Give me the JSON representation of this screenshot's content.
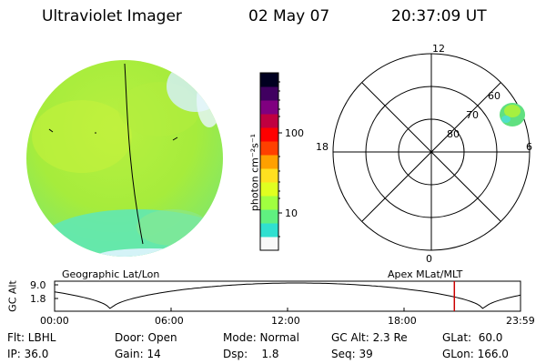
{
  "header": {
    "instrument": "Ultraviolet Imager",
    "date": "02 May 07",
    "time": "20:37:09 UT"
  },
  "colorbar": {
    "unit": "photon cm⁻²s⁻¹",
    "ticks": [
      "100",
      "10"
    ],
    "colors": [
      "#f8f8f8",
      "#30e0d0",
      "#60f080",
      "#a0ff40",
      "#e0ff20",
      "#ffe020",
      "#ffa000",
      "#ff4000",
      "#ff0000",
      "#c00040",
      "#800080",
      "#400060",
      "#000020"
    ]
  },
  "polar_plot": {
    "mlt_labels": [
      "12",
      "18",
      "6",
      "0"
    ],
    "lat_labels": [
      "60",
      "70",
      "80"
    ]
  },
  "altitude_panel": {
    "left_title": "Geographic Lat/Lon",
    "right_title": "Apex MLat/MLT",
    "axis_label": "GC Alt",
    "y_ticks": [
      "9.0",
      "1.8"
    ],
    "x_ticks": [
      "00:00",
      "06:00",
      "12:00",
      "18:00",
      "23:59"
    ],
    "current_time_fraction": 0.858,
    "marker_color": "#cc0000"
  },
  "info": {
    "row1": [
      "Flt: LBHL",
      "Door: Open",
      "Mode: Normal",
      "GC Alt: 2.3 Re",
      "GLat:  60.0"
    ],
    "row2": [
      "IP: 36.0",
      "Gain: 14",
      "Dsp:    1.8",
      "Seq: 39",
      "GLon: 166.0"
    ]
  },
  "image_colors": {
    "disk_main": "#b8f040",
    "disk_bright": "#a0e838",
    "disk_cyan": "#60e8c0",
    "limb": "#d8f0ff",
    "auroral_blob": "#60e080"
  }
}
